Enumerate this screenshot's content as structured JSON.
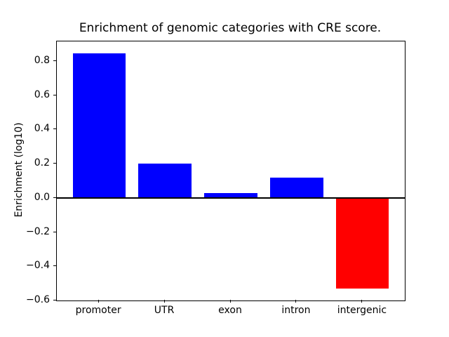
{
  "figure": {
    "background": "#ffffff"
  },
  "chart_data": {
    "type": "bar",
    "title": "Enrichment of genomic categories with CRE score.",
    "xlabel": "",
    "ylabel": "Enrichment (log10)",
    "categories": [
      "promoter",
      "UTR",
      "exon",
      "intron",
      "intergenic"
    ],
    "values": [
      0.845,
      0.2,
      0.03,
      0.12,
      -0.53
    ],
    "bar_colors": [
      "#0000ff",
      "#0000ff",
      "#0000ff",
      "#0000ff",
      "#ff0000"
    ],
    "baseline": 0,
    "baseline_color": "#000000",
    "bar_width": 0.8,
    "xlim": [
      -0.64,
      4.64
    ],
    "ylim": [
      -0.599,
      0.914
    ],
    "yticks": [
      -0.6,
      -0.4,
      -0.2,
      0.0,
      0.2,
      0.4,
      0.6,
      0.8
    ],
    "ytick_labels": [
      "−0.6",
      "−0.4",
      "−0.2",
      "0.0",
      "0.2",
      "0.4",
      "0.6",
      "0.8"
    ],
    "grid": false,
    "legend": null
  }
}
